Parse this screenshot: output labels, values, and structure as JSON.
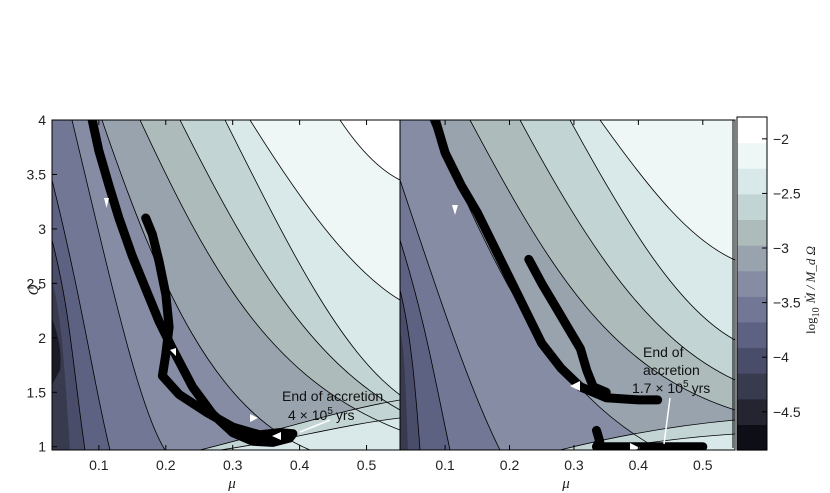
{
  "chart_data": [
    {
      "type": "contour",
      "panel": "left",
      "xlabel": "μ",
      "ylabel": "Q",
      "xlim": [
        0.03,
        0.55
      ],
      "ylim": [
        0.97,
        4.0
      ],
      "x_ticks": [
        "0.1",
        "0.2",
        "0.3",
        "0.4",
        "0.5"
      ],
      "y_ticks": [
        "1",
        "1.5",
        "2",
        "2.5",
        "3",
        "3.5",
        "4"
      ],
      "grid": false,
      "annotation": {
        "lines": [
          "End of accretion"
        ],
        "time_mantissa": "4 × 10",
        "time_exponent": "5",
        "time_unit": "yrs"
      },
      "series": [
        {
          "points": [
            [
              0.09,
              4.0
            ],
            [
              0.1,
              3.72
            ],
            [
              0.115,
              3.4
            ],
            [
              0.13,
              3.1
            ],
            [
              0.15,
              2.75
            ],
            [
              0.17,
              2.45
            ],
            [
              0.19,
              2.15
            ],
            [
              0.21,
              1.9
            ],
            [
              0.24,
              1.55
            ],
            [
              0.27,
              1.3
            ],
            [
              0.3,
              1.13
            ],
            [
              0.33,
              1.05
            ],
            [
              0.36,
              1.04
            ],
            [
              0.385,
              1.08
            ],
            [
              0.39,
              1.12
            ],
            [
              0.37,
              1.13
            ],
            [
              0.34,
              1.11
            ],
            [
              0.3,
              1.18
            ],
            [
              0.26,
              1.32
            ],
            [
              0.22,
              1.48
            ],
            [
              0.195,
              1.65
            ],
            [
              0.2,
              1.85
            ],
            [
              0.205,
              2.1
            ],
            [
              0.2,
              2.4
            ],
            [
              0.19,
              2.7
            ],
            [
              0.18,
              2.95
            ],
            [
              0.17,
              3.1
            ]
          ]
        }
      ]
    },
    {
      "type": "contour",
      "panel": "right",
      "xlabel": "μ",
      "xlim": [
        0.03,
        0.55
      ],
      "ylim": [
        0.97,
        4.0
      ],
      "x_ticks": [
        "0.1",
        "0.2",
        "0.3",
        "0.4",
        "0.5"
      ],
      "grid": false,
      "annotation": {
        "lines": [
          "End of",
          "accretion"
        ],
        "time_mantissa": "1.7 × 10",
        "time_exponent": "5",
        "time_unit": "yrs"
      },
      "series": [
        {
          "points": [
            [
              0.085,
              4.0
            ],
            [
              0.1,
              3.7
            ],
            [
              0.125,
              3.4
            ],
            [
              0.15,
              3.15
            ],
            [
              0.175,
              2.85
            ],
            [
              0.2,
              2.55
            ],
            [
              0.225,
              2.25
            ],
            [
              0.25,
              1.95
            ],
            [
              0.28,
              1.72
            ],
            [
              0.31,
              1.55
            ],
            [
              0.35,
              1.45
            ],
            [
              0.4,
              1.43
            ],
            [
              0.43,
              1.43
            ]
          ]
        },
        {
          "points": [
            [
              0.23,
              2.72
            ],
            [
              0.25,
              2.5
            ],
            [
              0.27,
              2.3
            ],
            [
              0.29,
              2.1
            ],
            [
              0.31,
              1.9
            ],
            [
              0.32,
              1.7
            ],
            [
              0.33,
              1.55
            ],
            [
              0.35,
              1.5
            ]
          ]
        },
        {
          "points": [
            [
              0.335,
              1.15
            ],
            [
              0.34,
              1.05
            ],
            [
              0.335,
              1.0
            ],
            [
              0.36,
              1.0
            ],
            [
              0.4,
              1.0
            ],
            [
              0.45,
              1.0
            ],
            [
              0.5,
              1.0
            ]
          ]
        }
      ]
    }
  ],
  "colorbar": {
    "label_prefix": "log",
    "label_subscript": "10",
    "label_fraction": "Ṁ / M_d Ω",
    "ticks": [
      "−2",
      "−2.5",
      "−3",
      "−3.5",
      "−4",
      "−4.5"
    ],
    "range": [
      -4.85,
      -1.8
    ],
    "levels": [
      "#0d0e16",
      "#242531",
      "#383a4e",
      "#4a4d6a",
      "#5e6282",
      "#717795",
      "#858ca3",
      "#99a3ae",
      "#adbbbb",
      "#c2d4d4",
      "#d9e8e8",
      "#eef6f6",
      "#ffffff"
    ]
  }
}
